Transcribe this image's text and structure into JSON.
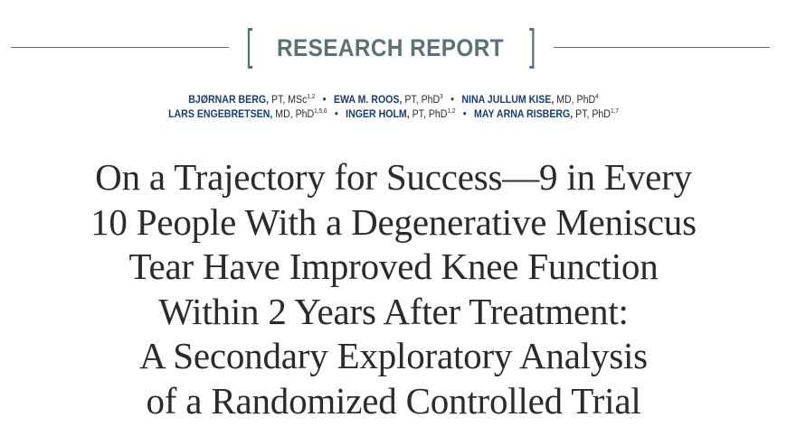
{
  "section": {
    "bracket_open": "[",
    "label": "RESEARCH REPORT",
    "bracket_close": "]"
  },
  "authors": {
    "separator": "•",
    "line1": [
      {
        "name": "BJØRNAR BERG,",
        "cred": " PT, MSc",
        "aff": "1,2"
      },
      {
        "name": "EWA M. ROOS,",
        "cred": " PT, PhD",
        "aff": "3"
      },
      {
        "name": "NINA JULLUM KISE,",
        "cred": " MD, PhD",
        "aff": "4"
      }
    ],
    "line2": [
      {
        "name": "LARS ENGEBRETSEN,",
        "cred": " MD, PhD",
        "aff": "1,5,6"
      },
      {
        "name": "INGER HOLM,",
        "cred": " PT, PhD",
        "aff": "1,2"
      },
      {
        "name": "MAY ARNA RISBERG,",
        "cred": " PT, PhD",
        "aff": "1,7"
      }
    ]
  },
  "title": {
    "lines": [
      "On a Trajectory for Success—9 in Every",
      "10 People With a Degenerative Meniscus",
      "Tear Have Improved Knee Function",
      "Within 2 Years After Treatment:",
      "A Secondary Exploratory Analysis",
      "of a Randomized Controlled Trial"
    ]
  }
}
